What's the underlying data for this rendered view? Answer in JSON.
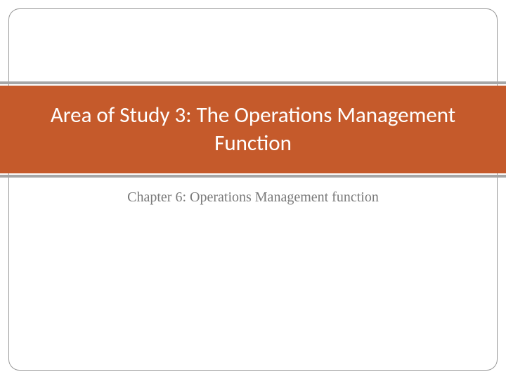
{
  "slide": {
    "title": "Area of Study 3: The Operations Management Function",
    "subtitle": "Chapter 6: Operations Management function"
  },
  "style": {
    "band_background": "#c55a2b",
    "band_text_color": "#ffffff",
    "accent_line_color": "#a6a6a6",
    "frame_border_color": "#999999",
    "subtitle_color": "#7a7a7a",
    "title_fontsize": 31,
    "subtitle_fontsize": 20,
    "background": "#ffffff",
    "frame_radius": 16
  }
}
